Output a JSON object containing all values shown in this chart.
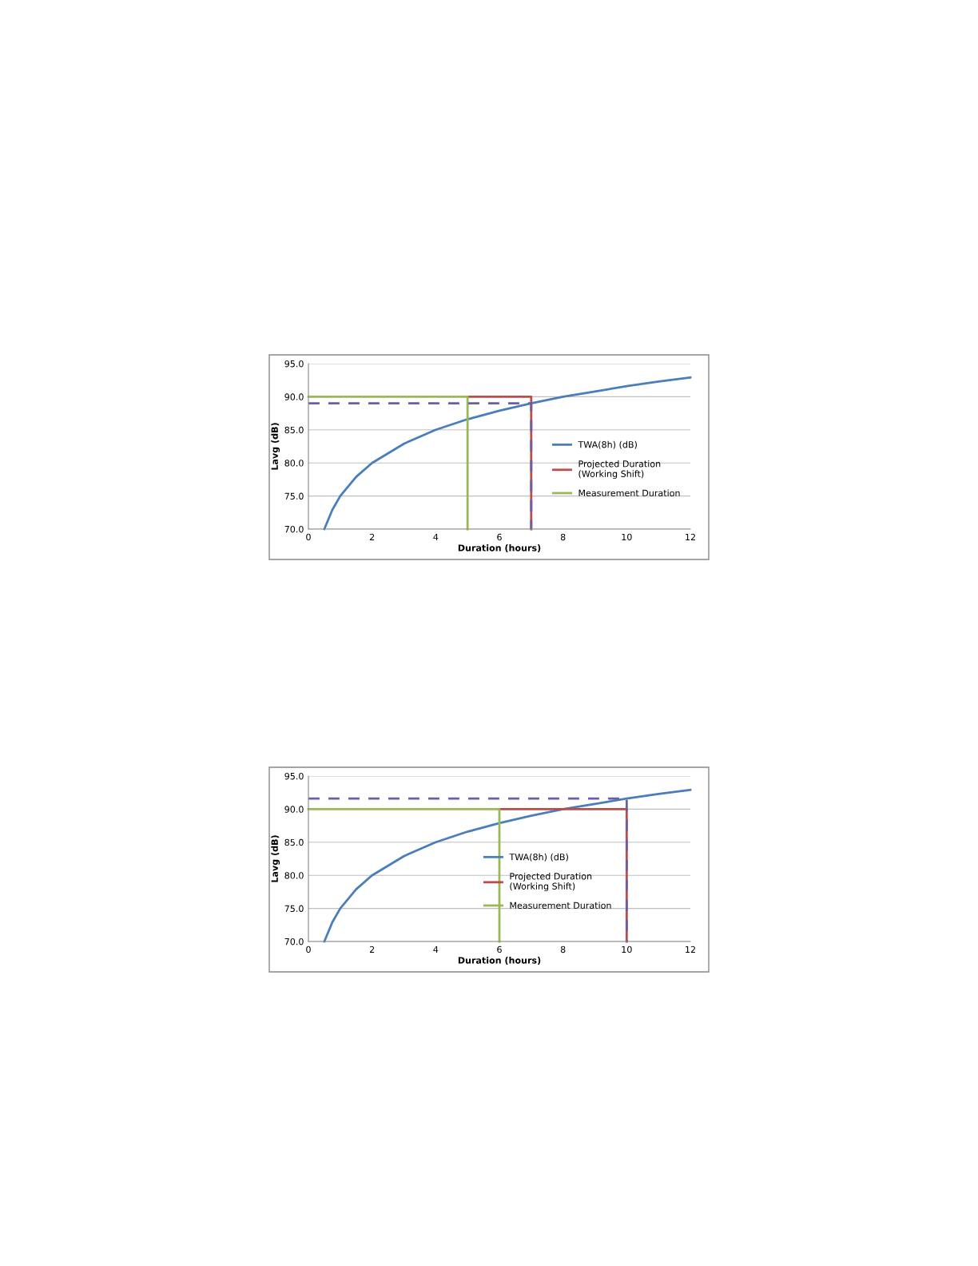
{
  "chart_data": [
    {
      "type": "line",
      "xlabel": "Duration (hours)",
      "ylabel": "Lavg (dB)",
      "xlim": [
        0,
        12
      ],
      "xticks": [
        0,
        2,
        4,
        6,
        8,
        10,
        12
      ],
      "ylim": [
        70,
        95
      ],
      "yticks": [
        {
          "value": 70,
          "label": "70.0"
        },
        {
          "value": 75,
          "label": "75.0"
        },
        {
          "value": 80,
          "label": "80.0"
        },
        {
          "value": 85,
          "label": "85.0"
        },
        {
          "value": 90,
          "label": "90.0"
        },
        {
          "value": 95,
          "label": "95.0"
        }
      ],
      "grid": "y",
      "legend": "right",
      "marker": "none",
      "series": [
        {
          "name": "TWA(8h) (dB)",
          "color": "#4a7ebb",
          "x": [
            0.5,
            0.75,
            1,
            1.5,
            2,
            3,
            4,
            5,
            6,
            7,
            8,
            9,
            10,
            11,
            12
          ],
          "values": [
            70,
            72.9,
            75,
            77.9,
            80,
            82.9,
            85,
            86.6,
            87.9,
            89.0,
            90,
            90.8,
            91.6,
            92.3,
            92.9
          ]
        },
        {
          "name": "Projected Duration\n(Working Shift)",
          "color": "#be4b48",
          "x": [
            5,
            7,
            7
          ],
          "values": [
            90,
            90,
            70
          ]
        },
        {
          "name": "Measurement Duration",
          "color": "#98b954",
          "x": [
            0,
            5,
            5
          ],
          "values": [
            90,
            90,
            70
          ]
        },
        {
          "color": "#6a5ea8",
          "line_style": "dashed",
          "x": [
            0,
            7,
            7
          ],
          "values": [
            89,
            89,
            70
          ]
        }
      ]
    },
    {
      "type": "line",
      "xlabel": "Duration (hours)",
      "ylabel": "Lavg (dB)",
      "xlim": [
        0,
        12
      ],
      "xticks": [
        0,
        2,
        4,
        6,
        8,
        10,
        12
      ],
      "ylim": [
        70,
        95
      ],
      "yticks": [
        {
          "value": 70,
          "label": "70.0"
        },
        {
          "value": 75,
          "label": "75.0"
        },
        {
          "value": 80,
          "label": "80.0"
        },
        {
          "value": 85,
          "label": "85.0"
        },
        {
          "value": 90,
          "label": "90.0"
        },
        {
          "value": 95,
          "label": "95.0"
        }
      ],
      "grid": "y",
      "legend": "center",
      "marker": "none",
      "series": [
        {
          "name": "TWA(8h) (dB)",
          "color": "#4a7ebb",
          "x": [
            0.5,
            0.75,
            1,
            1.5,
            2,
            3,
            4,
            5,
            6,
            7,
            8,
            9,
            10,
            11,
            12
          ],
          "values": [
            70,
            72.9,
            75,
            77.9,
            80,
            82.9,
            85,
            86.6,
            87.9,
            89.0,
            90,
            90.8,
            91.6,
            92.3,
            92.9
          ]
        },
        {
          "name": "Projected Duration\n(Working Shift)",
          "color": "#be4b48",
          "x": [
            6,
            10,
            10
          ],
          "values": [
            90,
            90,
            70
          ]
        },
        {
          "name": "Measurement Duration",
          "color": "#98b954",
          "x": [
            0,
            6,
            6
          ],
          "values": [
            90,
            90,
            70
          ]
        },
        {
          "color": "#6a5ea8",
          "line_style": "dashed",
          "x": [
            0,
            10,
            10
          ],
          "values": [
            91.6,
            91.6,
            70
          ]
        }
      ]
    }
  ]
}
